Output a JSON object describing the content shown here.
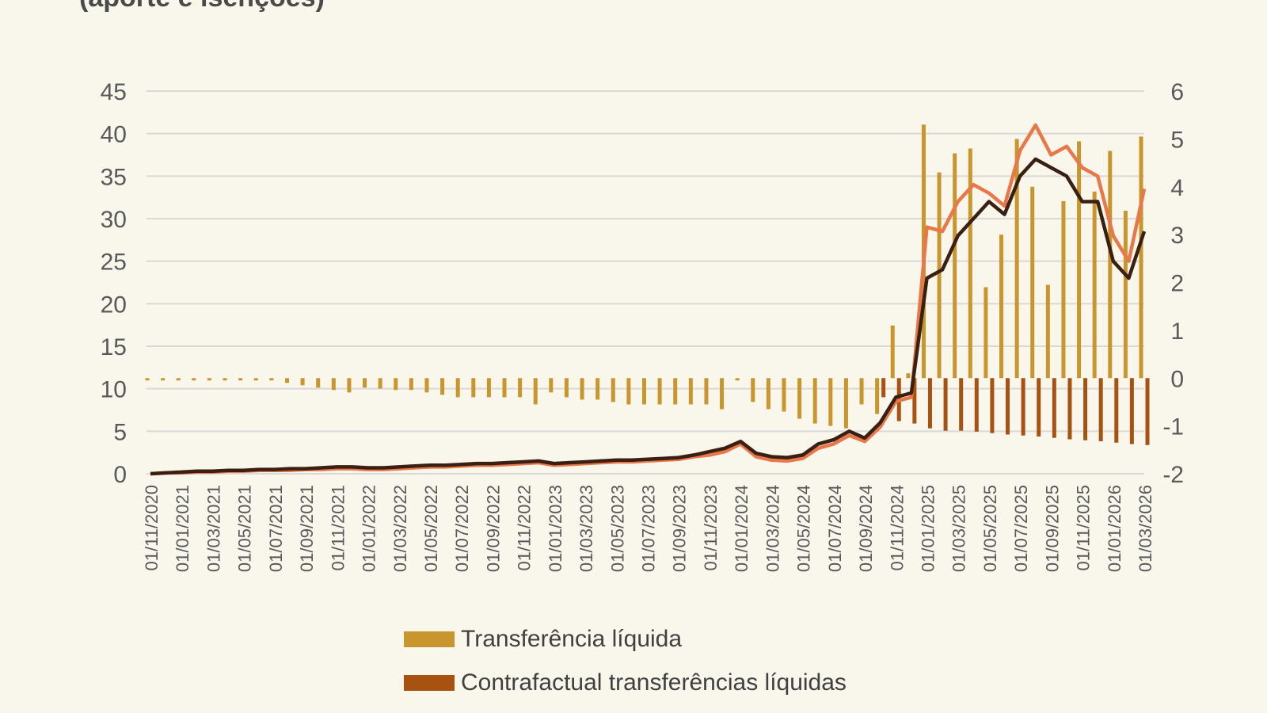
{
  "header": {
    "title": "(aporte e isenções)"
  },
  "chart_data": {
    "type": "bar",
    "ylim_left": [
      0,
      45
    ],
    "yticks_left": [
      0,
      5,
      10,
      15,
      20,
      25,
      30,
      35,
      40,
      45
    ],
    "ylim_right": [
      -2,
      6
    ],
    "yticks_right": [
      -2,
      -1,
      0,
      1,
      2,
      3,
      4,
      5,
      6
    ],
    "grid": true,
    "x_tick_labels": [
      "01/11/2020",
      "01/01/2021",
      "01/03/2021",
      "01/05/2021",
      "01/07/2021",
      "01/09/2021",
      "01/11/2021",
      "01/01/2022",
      "01/03/2022",
      "01/05/2022",
      "01/07/2022",
      "01/09/2022",
      "01/11/2022",
      "01/01/2023",
      "01/03/2023",
      "01/05/2023",
      "01/07/2023",
      "01/09/2023",
      "01/11/2023",
      "01/01/2024",
      "01/03/2024",
      "01/05/2024",
      "01/07/2024",
      "01/09/2024",
      "01/11/2024",
      "01/01/2025",
      "01/03/2025",
      "01/05/2025",
      "01/07/2025",
      "01/09/2025",
      "01/11/2025",
      "01/01/2026",
      "01/03/2026"
    ],
    "x": [
      "01/11/2020",
      "01/12/2020",
      "01/01/2021",
      "01/02/2021",
      "01/03/2021",
      "01/04/2021",
      "01/05/2021",
      "01/06/2021",
      "01/07/2021",
      "01/08/2021",
      "01/09/2021",
      "01/10/2021",
      "01/11/2021",
      "01/12/2021",
      "01/01/2022",
      "01/02/2022",
      "01/03/2022",
      "01/04/2022",
      "01/05/2022",
      "01/06/2022",
      "01/07/2022",
      "01/08/2022",
      "01/09/2022",
      "01/10/2022",
      "01/11/2022",
      "01/12/2022",
      "01/01/2023",
      "01/02/2023",
      "01/03/2023",
      "01/04/2023",
      "01/05/2023",
      "01/06/2023",
      "01/07/2023",
      "01/08/2023",
      "01/09/2023",
      "01/10/2023",
      "01/11/2023",
      "01/12/2023",
      "01/01/2024",
      "01/02/2024",
      "01/03/2024",
      "01/04/2024",
      "01/05/2024",
      "01/06/2024",
      "01/07/2024",
      "01/08/2024",
      "01/09/2024",
      "01/10/2024",
      "01/11/2024",
      "01/12/2024",
      "01/01/2025",
      "01/02/2025",
      "01/03/2025",
      "01/04/2025",
      "01/05/2025",
      "01/06/2025",
      "01/07/2025",
      "01/08/2025",
      "01/09/2025",
      "01/10/2025",
      "01/11/2025",
      "01/12/2025",
      "01/01/2026",
      "01/02/2026",
      "01/03/2026"
    ],
    "series": [
      {
        "name": "Transferência líquida",
        "type": "bar",
        "axis": "right",
        "color": "#c8962c",
        "values": [
          -0.05,
          -0.05,
          -0.05,
          -0.05,
          -0.05,
          -0.05,
          -0.05,
          -0.05,
          -0.05,
          -0.1,
          -0.15,
          -0.2,
          -0.25,
          -0.3,
          -0.2,
          -0.22,
          -0.25,
          -0.25,
          -0.3,
          -0.35,
          -0.4,
          -0.4,
          -0.4,
          -0.4,
          -0.4,
          -0.55,
          -0.3,
          -0.4,
          -0.45,
          -0.45,
          -0.5,
          -0.55,
          -0.55,
          -0.55,
          -0.55,
          -0.55,
          -0.55,
          -0.65,
          -0.05,
          -0.5,
          -0.65,
          -0.7,
          -0.85,
          -0.95,
          -1.0,
          -1.05,
          -0.55,
          -0.75,
          1.1,
          0.1,
          5.3,
          4.3,
          4.7,
          4.8,
          1.9,
          3.0,
          5.0,
          4.0,
          1.95,
          3.7,
          4.95,
          3.9,
          4.75,
          3.5,
          5.05
        ]
      },
      {
        "name": "Contrafactual transferências líquidas",
        "type": "bar",
        "axis": "right",
        "color": "#a85212",
        "values": [
          0,
          0,
          0,
          0,
          0,
          0,
          0,
          0,
          0,
          0,
          0,
          0,
          0,
          0,
          0,
          0,
          0,
          0,
          0,
          0,
          0,
          0,
          0,
          0,
          0,
          0,
          0,
          0,
          0,
          0,
          0,
          0,
          0,
          0,
          0,
          0,
          0,
          0,
          0,
          0,
          0,
          0,
          0,
          0,
          0,
          0,
          0,
          -0.4,
          -0.9,
          -0.95,
          -1.05,
          -1.1,
          -1.1,
          -1.12,
          -1.15,
          -1.18,
          -1.2,
          -1.22,
          -1.25,
          -1.28,
          -1.3,
          -1.32,
          -1.35,
          -1.38,
          -1.4
        ]
      },
      {
        "type": "line",
        "axis": "left",
        "color": "#e8774a",
        "values": [
          0,
          0.1,
          0.1,
          0.2,
          0.2,
          0.3,
          0.3,
          0.4,
          0.4,
          0.4,
          0.5,
          0.5,
          0.6,
          0.6,
          0.5,
          0.5,
          0.6,
          0.7,
          0.8,
          0.8,
          0.9,
          1.0,
          1.0,
          1.1,
          1.2,
          1.3,
          1.0,
          1.1,
          1.2,
          1.3,
          1.4,
          1.4,
          1.5,
          1.6,
          1.7,
          2.0,
          2.2,
          2.6,
          3.5,
          2.0,
          1.6,
          1.5,
          1.8,
          3.0,
          3.5,
          4.5,
          3.8,
          5.5,
          8.5,
          9.0,
          29.0,
          28.5,
          32.0,
          34.0,
          33.0,
          31.5,
          38.0,
          41.0,
          37.5,
          38.5,
          36.0,
          35.0,
          28.0,
          25.0,
          33.5
        ]
      },
      {
        "type": "line",
        "axis": "left",
        "color": "#3a2012",
        "values": [
          0,
          0.1,
          0.2,
          0.3,
          0.3,
          0.4,
          0.4,
          0.5,
          0.5,
          0.6,
          0.6,
          0.7,
          0.8,
          0.8,
          0.7,
          0.7,
          0.8,
          0.9,
          1.0,
          1.0,
          1.1,
          1.2,
          1.2,
          1.3,
          1.4,
          1.5,
          1.2,
          1.3,
          1.4,
          1.5,
          1.6,
          1.6,
          1.7,
          1.8,
          1.9,
          2.2,
          2.6,
          3.0,
          3.8,
          2.4,
          2.0,
          1.9,
          2.2,
          3.5,
          4.0,
          5.0,
          4.2,
          6.0,
          9.0,
          9.5,
          23.0,
          24.0,
          28.0,
          30.0,
          32.0,
          30.5,
          35.0,
          37.0,
          36.0,
          35.0,
          32.0,
          32.0,
          25.0,
          23.0,
          28.5
        ]
      }
    ],
    "legend_position": "bottom"
  }
}
